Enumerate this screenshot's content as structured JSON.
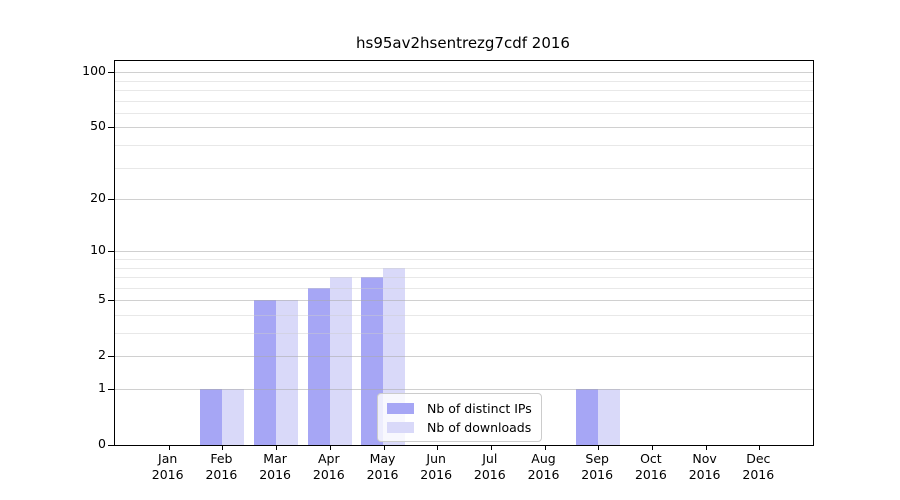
{
  "chart_data": {
    "type": "bar",
    "title": "hs95av2hsentrezg7cdf 2016",
    "x_categories": [
      "Jan",
      "Feb",
      "Mar",
      "Apr",
      "May",
      "Jun",
      "Jul",
      "Aug",
      "Sep",
      "Oct",
      "Nov",
      "Dec"
    ],
    "x_year": "2016",
    "series": [
      {
        "name": "Nb of distinct IPs",
        "color": "#a6a6f5",
        "values": [
          0,
          1,
          5,
          6,
          7,
          0,
          0,
          0,
          1,
          0,
          0,
          0
        ]
      },
      {
        "name": "Nb of downloads",
        "color": "#d9d9f9",
        "values": [
          0,
          1,
          5,
          7,
          8,
          0,
          0,
          0,
          1,
          0,
          0,
          0
        ]
      }
    ],
    "yscale": "log1p",
    "ylim": [
      0,
      115
    ],
    "y_ticks": [
      0,
      1,
      2,
      5,
      10,
      20,
      50,
      100
    ],
    "y_minor_ticks": [
      3,
      4,
      6,
      7,
      8,
      9,
      30,
      40,
      60,
      70,
      80,
      90
    ],
    "grid": "horizontal",
    "legend_position": "inside-bottom-center",
    "colors": {
      "axis": "#000000",
      "background": "#ffffff"
    }
  }
}
